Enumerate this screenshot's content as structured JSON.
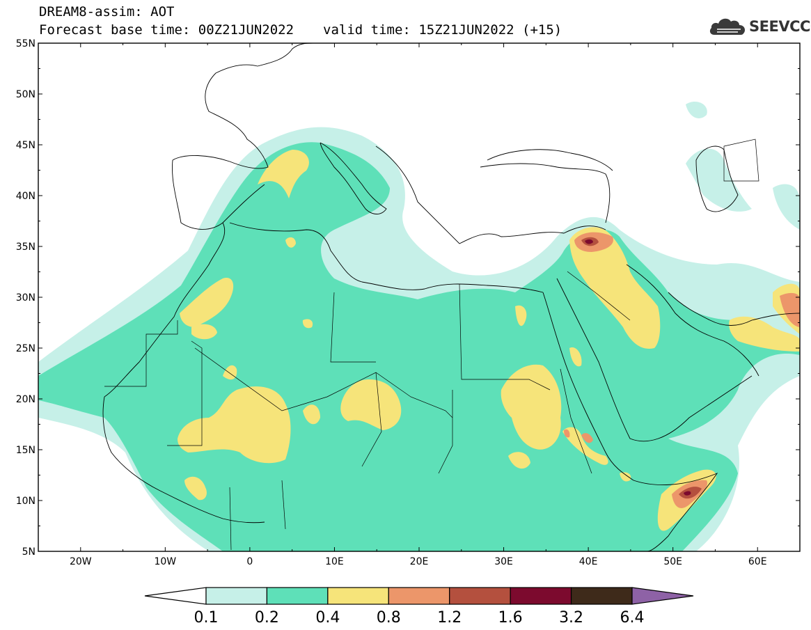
{
  "header": {
    "line1": "DREAM8-assim: AOT",
    "base_time_label": "Forecast base time: 00Z21JUN2022",
    "valid_time_label": "valid time: 15Z21JUN2022 (+15)"
  },
  "logo": {
    "text": "SEEVCCC",
    "icon": "cloud-icon"
  },
  "map": {
    "lon_range": [
      -25,
      65
    ],
    "lat_range": [
      5,
      55
    ],
    "lat_ticks": [
      "55N",
      "50N",
      "45N",
      "40N",
      "35N",
      "30N",
      "25N",
      "20N",
      "15N",
      "10N",
      "5N"
    ],
    "lon_ticks": [
      "20W",
      "10W",
      "0",
      "10E",
      "20E",
      "30E",
      "40E",
      "50E",
      "60E"
    ]
  },
  "colorbar": {
    "labels": [
      "0.1",
      "0.2",
      "0.4",
      "0.8",
      "1.2",
      "1.6",
      "3.2",
      "6.4"
    ],
    "colors": [
      "#ffffff",
      "#c6f0e8",
      "#5ee0b8",
      "#f6e47a",
      "#ec966a",
      "#b4503e",
      "#7c0a2e",
      "#3e2a1a",
      "#8e62a6"
    ]
  }
}
